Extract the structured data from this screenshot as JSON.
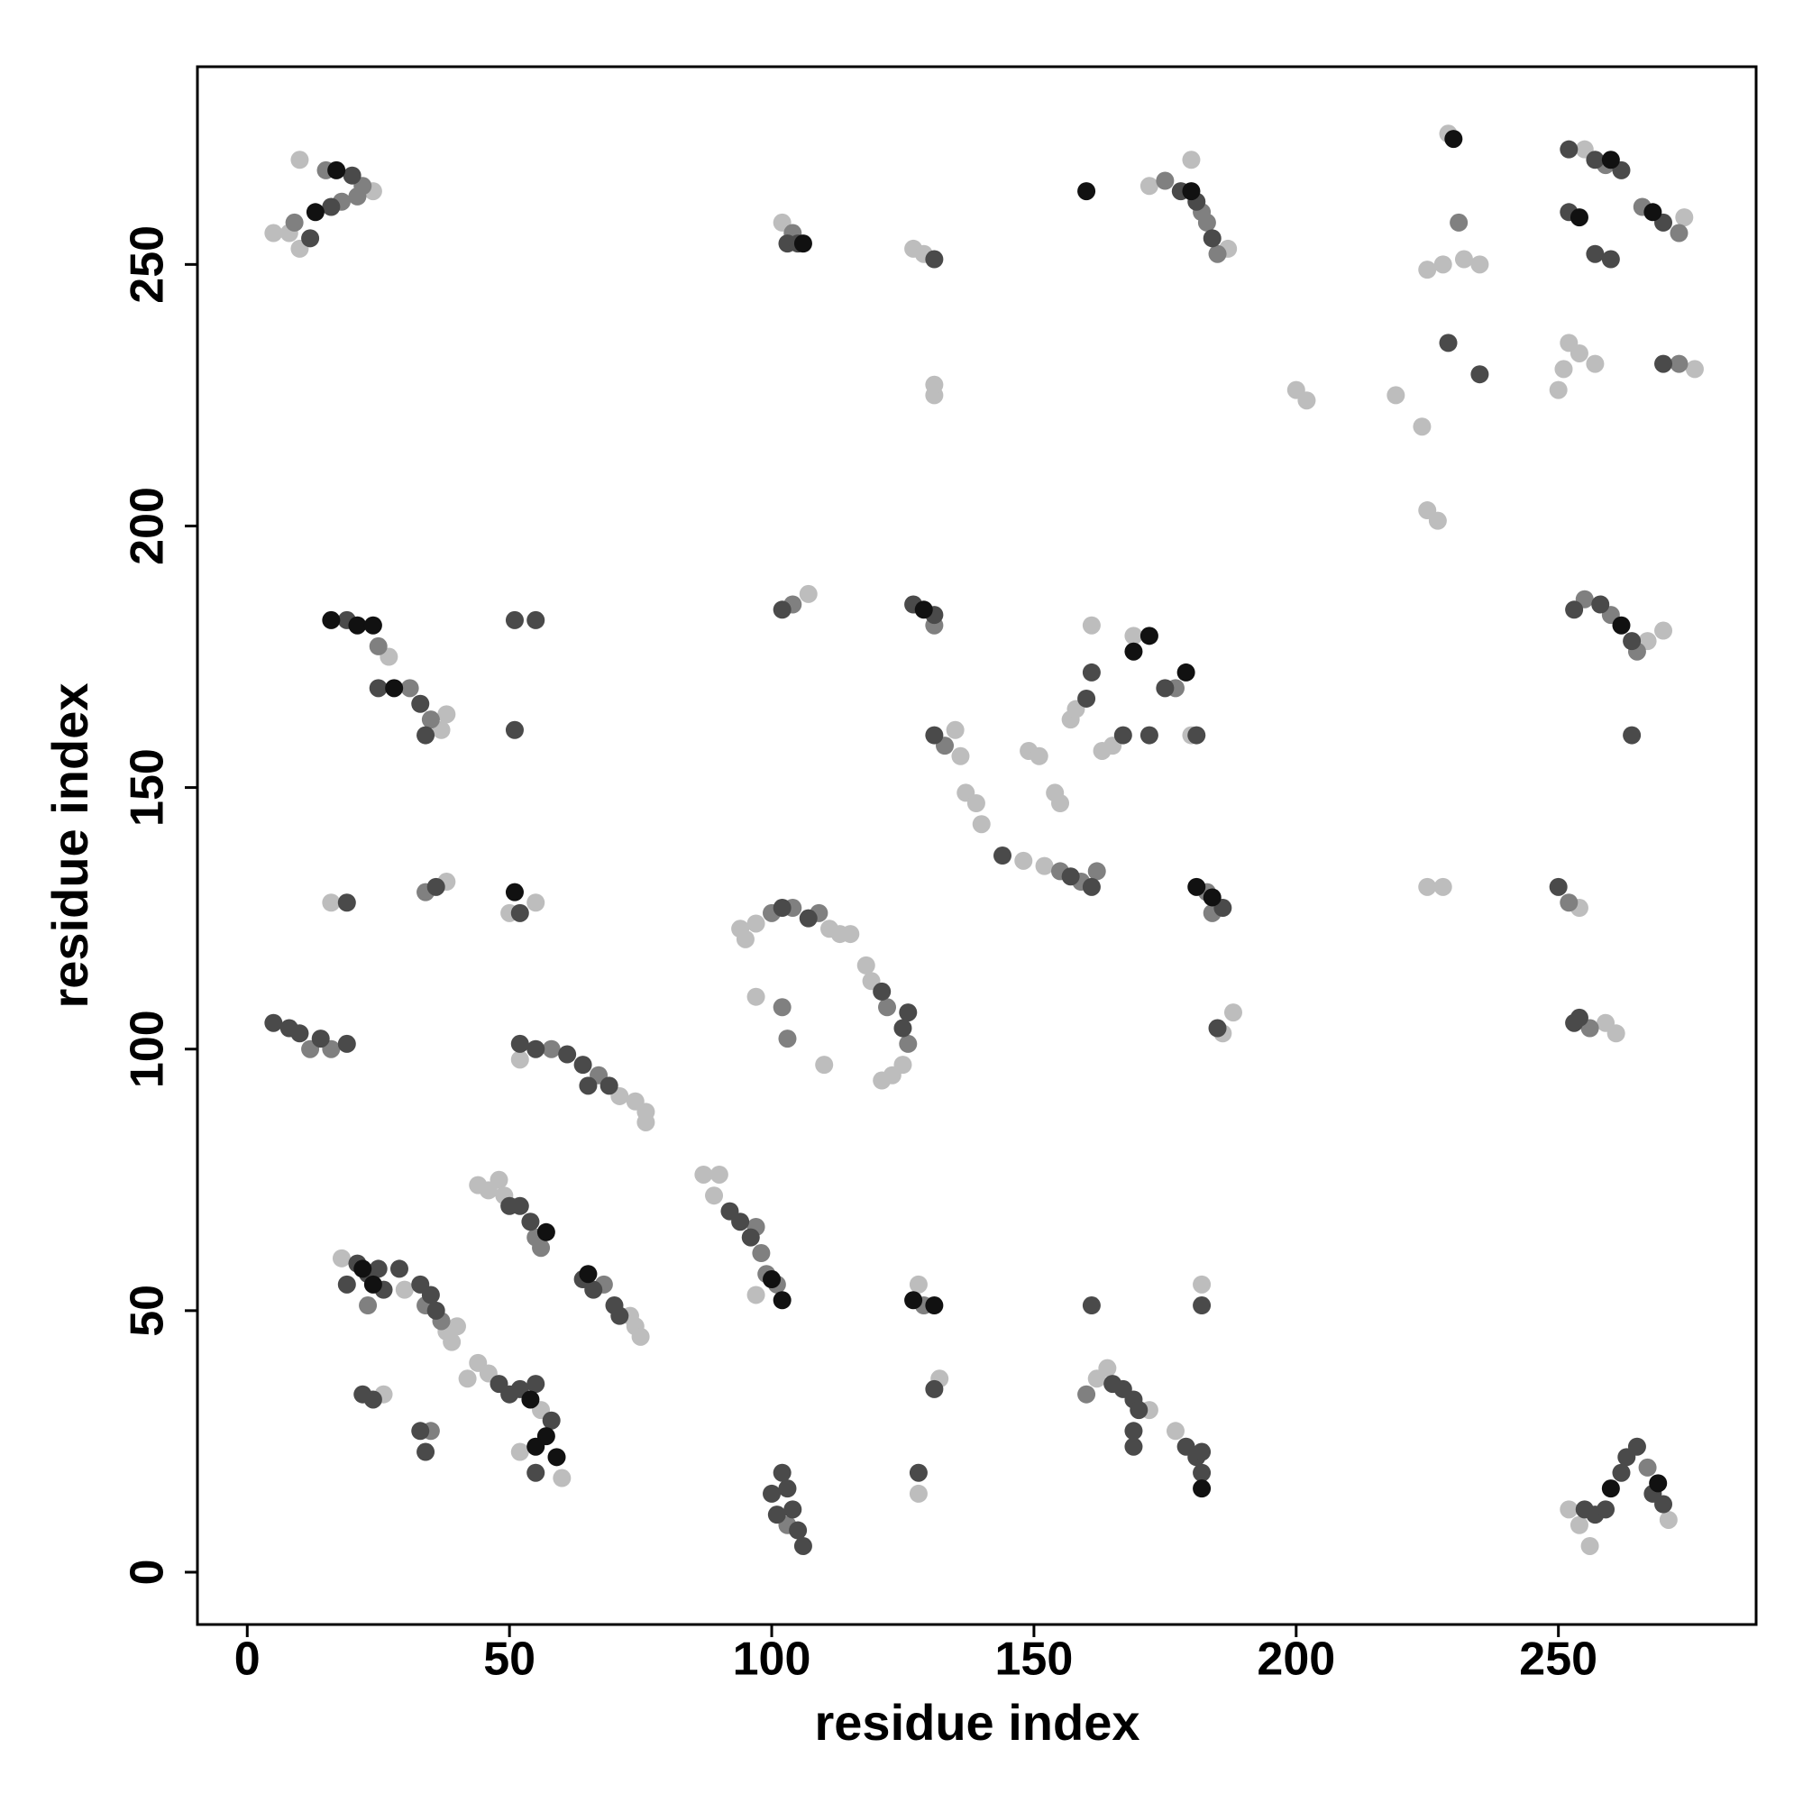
{
  "chart_data": {
    "type": "scatter",
    "xlabel": "residue index",
    "ylabel": "residue index",
    "xlim": [
      -9.5,
      287.7
    ],
    "ylim": [
      -10,
      287.8
    ],
    "xticks": [
      0,
      50,
      100,
      150,
      200,
      250
    ],
    "yticks": [
      0,
      50,
      100,
      150,
      200,
      250
    ],
    "series": [
      {
        "color": "#bdbdbd",
        "x": [
          5,
          8,
          10,
          10,
          24,
          102,
          127,
          129,
          172,
          180,
          187,
          229,
          225,
          228,
          232,
          235,
          200,
          202,
          219,
          224,
          225,
          227,
          250,
          251,
          252,
          254,
          257,
          276,
          274,
          255,
          131,
          131,
          27,
          38,
          37,
          107,
          135,
          136,
          137,
          139,
          140,
          148,
          149,
          151,
          152,
          154,
          155,
          157,
          158,
          161,
          163,
          165,
          169,
          180,
          225,
          228,
          254,
          259,
          261,
          270,
          267,
          16,
          38,
          55,
          50,
          52,
          74,
          76,
          76,
          71,
          94,
          95,
          97,
          111,
          113,
          115,
          118,
          119,
          121,
          123,
          125,
          97,
          110,
          44,
          46,
          48,
          49,
          18,
          30,
          39,
          40,
          38,
          74,
          75,
          73,
          87,
          89,
          90,
          97,
          42,
          44,
          46,
          56,
          60,
          52,
          26,
          128,
          128,
          132,
          164,
          162,
          172,
          177,
          182,
          254,
          256,
          252,
          271,
          188,
          186
        ],
        "values": [
          256,
          256,
          253,
          270,
          264,
          258,
          253,
          252,
          265,
          270,
          253,
          275,
          249,
          250,
          251,
          250,
          226,
          224,
          225,
          219,
          203,
          201,
          226,
          230,
          235,
          233,
          231,
          230,
          259,
          272,
          225,
          227,
          175,
          164,
          161,
          187,
          161,
          156,
          149,
          147,
          143,
          136,
          157,
          156,
          135,
          149,
          147,
          163,
          165,
          181,
          157,
          158,
          179,
          160,
          131,
          131,
          127,
          105,
          103,
          180,
          178,
          128,
          132,
          128,
          126,
          98,
          90,
          88,
          86,
          91,
          123,
          121,
          124,
          123,
          122,
          122,
          116,
          113,
          94,
          95,
          97,
          110,
          97,
          74,
          73,
          75,
          72,
          60,
          54,
          44,
          47,
          46,
          47,
          45,
          49,
          76,
          72,
          76,
          53,
          37,
          40,
          38,
          31,
          18,
          23,
          34,
          15,
          55,
          37,
          39,
          37,
          31,
          27,
          55,
          9,
          5,
          12,
          10,
          107,
          103
        ]
      },
      {
        "color": "#808080",
        "x": [
          9,
          15,
          18,
          21,
          22,
          104,
          175,
          182,
          183,
          185,
          231,
          259,
          266,
          273,
          273,
          25,
          31,
          35,
          104,
          131,
          133,
          155,
          159,
          162,
          177,
          183,
          184,
          255,
          260,
          265,
          252,
          256,
          34,
          12,
          16,
          58,
          67,
          100,
          104,
          109,
          122,
          126,
          102,
          103,
          55,
          56,
          23,
          34,
          37,
          68,
          97,
          98,
          99,
          101,
          35,
          103,
          129,
          160,
          267
        ],
        "values": [
          258,
          268,
          262,
          263,
          265,
          256,
          266,
          260,
          258,
          252,
          258,
          269,
          261,
          256,
          231,
          177,
          169,
          163,
          185,
          181,
          158,
          134,
          132,
          134,
          169,
          130,
          126,
          186,
          183,
          176,
          128,
          104,
          130,
          100,
          100,
          100,
          95,
          126,
          127,
          126,
          108,
          101,
          108,
          102,
          64,
          62,
          51,
          51,
          48,
          55,
          66,
          61,
          57,
          55,
          27,
          9,
          51,
          34,
          20
        ]
      },
      {
        "color": "#4a4a4a",
        "x": [
          12,
          16,
          20,
          103,
          105,
          131,
          178,
          181,
          184,
          229,
          235,
          252,
          257,
          262,
          252,
          257,
          260,
          270,
          270,
          19,
          25,
          33,
          34,
          51,
          55,
          51,
          102,
          127,
          131,
          131,
          144,
          157,
          161,
          160,
          161,
          167,
          172,
          175,
          181,
          186,
          185,
          253,
          258,
          264,
          264,
          250,
          253,
          254,
          19,
          36,
          52,
          5,
          8,
          10,
          14,
          19,
          55,
          61,
          64,
          65,
          69,
          52,
          102,
          107,
          121,
          125,
          126,
          50,
          52,
          54,
          19,
          21,
          23,
          25,
          26,
          29,
          33,
          35,
          36,
          64,
          66,
          70,
          71,
          92,
          94,
          96,
          48,
          50,
          52,
          58,
          55,
          55,
          22,
          24,
          33,
          34,
          100,
          101,
          102,
          103,
          104,
          105,
          106,
          128,
          131,
          165,
          167,
          169,
          170,
          169,
          169,
          179,
          181,
          182,
          182,
          161,
          182,
          257,
          259,
          262,
          263,
          265,
          268,
          270,
          255
        ],
        "values": [
          255,
          261,
          267,
          254,
          254,
          251,
          264,
          262,
          255,
          235,
          229,
          272,
          270,
          268,
          260,
          252,
          251,
          258,
          231,
          182,
          169,
          166,
          160,
          182,
          182,
          161,
          184,
          185,
          183,
          160,
          137,
          133,
          131,
          167,
          172,
          160,
          160,
          169,
          160,
          127,
          104,
          184,
          185,
          178,
          160,
          131,
          105,
          106,
          128,
          131,
          126,
          105,
          104,
          103,
          102,
          101,
          100,
          99,
          97,
          93,
          93,
          101,
          127,
          125,
          111,
          104,
          107,
          70,
          70,
          67,
          55,
          59,
          57,
          58,
          54,
          58,
          55,
          53,
          50,
          56,
          54,
          51,
          49,
          69,
          67,
          64,
          36,
          34,
          35,
          29,
          19,
          36,
          34,
          33,
          27,
          23,
          15,
          11,
          19,
          16,
          12,
          8,
          5,
          19,
          35,
          36,
          35,
          33,
          31,
          27,
          24,
          24,
          22,
          19,
          23,
          51,
          51,
          11,
          12,
          19,
          22,
          24,
          15,
          13,
          12
        ]
      },
      {
        "color": "#111111",
        "x": [
          16,
          21,
          24,
          28,
          57,
          59,
          57,
          22,
          24,
          65,
          182,
          160,
          17,
          13,
          269,
          260,
          131,
          51,
          181,
          184,
          169,
          172,
          260,
          262,
          129,
          54,
          100,
          179,
          268,
          254,
          180,
          230,
          127,
          106,
          55,
          102
        ],
        "values": [
          182,
          181,
          181,
          169,
          65,
          22,
          26,
          58,
          55,
          57,
          16,
          264,
          268,
          260,
          17,
          16,
          51,
          130,
          131,
          129,
          176,
          179,
          270,
          181,
          184,
          33,
          56,
          172,
          260,
          259,
          264,
          274,
          52,
          254,
          24,
          52
        ]
      }
    ]
  }
}
